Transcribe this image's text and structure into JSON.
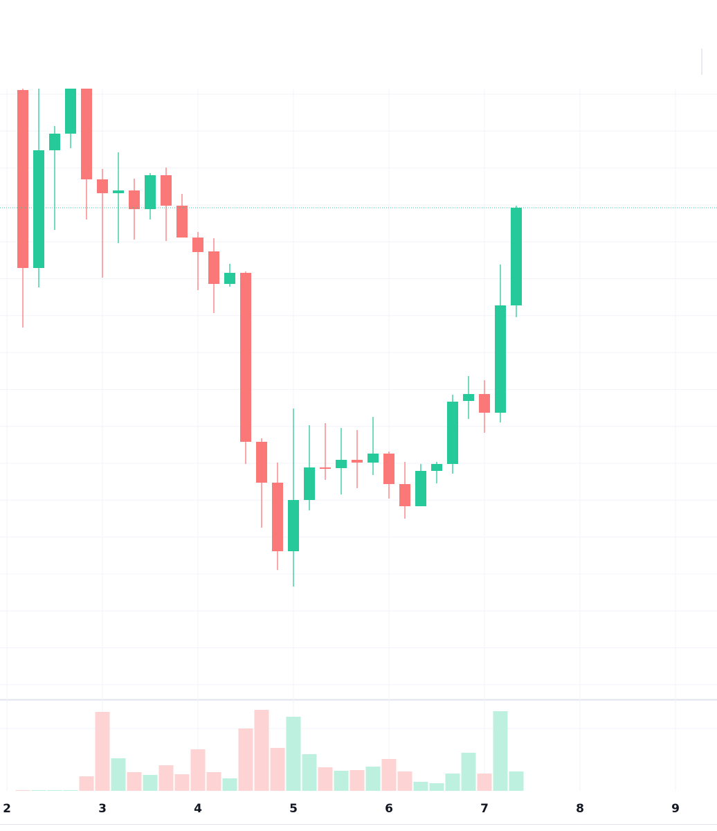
{
  "chart_data": {
    "type": "candlestick",
    "x": [
      2.1667,
      2.3333,
      2.5,
      2.6667,
      2.8333,
      3,
      3.1667,
      3.3333,
      3.5,
      3.6667,
      3.8333,
      4,
      4.1667,
      4.3333,
      4.5,
      4.6667,
      4.8333,
      5,
      5.1667,
      5.3333,
      5.5,
      5.6667,
      5.8333,
      6,
      6.1667,
      6.3333,
      6.5,
      6.6667,
      6.8333,
      7,
      7.1667,
      7.3333
    ],
    "open": [
      870,
      613,
      783,
      807,
      890,
      741,
      721,
      725,
      698,
      747,
      703,
      657,
      637,
      590,
      606,
      362,
      303,
      204,
      278,
      325,
      324,
      336,
      332,
      345,
      301,
      269,
      320,
      330,
      421,
      431,
      404,
      559
    ],
    "high": [
      880,
      880,
      818,
      895,
      895,
      756,
      780,
      742,
      750,
      758,
      720,
      665,
      656,
      619,
      608,
      367,
      332,
      410,
      386,
      389,
      382,
      379,
      398,
      348,
      333,
      330,
      333,
      430,
      457,
      451,
      618,
      703
    ],
    "low": [
      527,
      585,
      668,
      786,
      683,
      599,
      649,
      654,
      683,
      652,
      657,
      581,
      548,
      586,
      330,
      238,
      177,
      153,
      263,
      307,
      286,
      295,
      314,
      280,
      251,
      269,
      302,
      316,
      395,
      375,
      390,
      542
    ],
    "close": [
      613,
      783,
      807,
      890,
      741,
      721,
      725,
      698,
      747,
      703,
      657,
      636,
      590,
      606,
      362,
      303,
      204,
      278,
      325,
      323,
      336,
      332,
      345,
      301,
      269,
      320,
      330,
      420,
      431,
      404,
      559,
      700
    ],
    "volume": [
      1,
      1,
      1,
      1,
      21,
      114,
      47,
      27,
      23,
      37,
      24,
      60,
      27,
      18,
      90,
      117,
      62,
      107,
      53,
      34,
      29,
      30,
      35,
      46,
      28,
      13,
      11,
      25,
      55,
      25,
      115,
      28
    ],
    "up_color": "#26c99a",
    "down_color": "#fb7878",
    "volume_up_color": "#bdf0de",
    "volume_down_color": "#fdd3d3",
    "last_price_color": "#26c99a",
    "xlim": [
      1.9275,
      9.4348
    ],
    "xticks": [
      2,
      3,
      4,
      5,
      6,
      7,
      8,
      9
    ],
    "ylim": [
      10,
      870
    ],
    "volume_lim": [
      0,
      130
    ],
    "grid": true
  }
}
